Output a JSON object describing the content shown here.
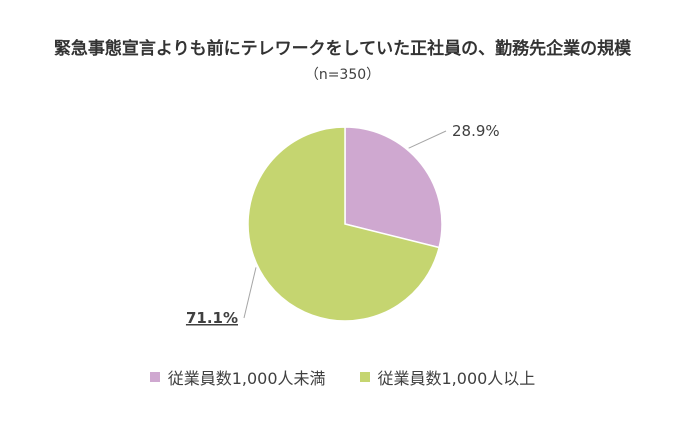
{
  "chart_data": {
    "type": "pie",
    "title": "緊急事態宣言よりも前にテレワークをしていた正社員の、勤務先企業の規模",
    "subtitle": "（n=350）",
    "slices": [
      {
        "name": "従業員数1,000人未満",
        "value": 28.9,
        "label": "28.9%",
        "color": "#cfa8d0"
      },
      {
        "name": "従業員数1,000人以上",
        "value": 71.1,
        "label": "71.1%",
        "color": "#c5d570"
      }
    ],
    "legend_position": "bottom"
  }
}
